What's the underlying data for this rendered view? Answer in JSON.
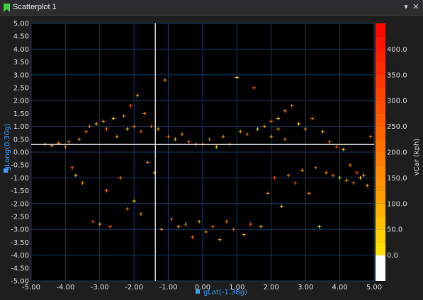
{
  "window": {
    "title": "Scatterplot 1",
    "dropdown_icon": "chevron-down-icon",
    "close_icon": "close-icon"
  },
  "colors": {
    "plot_bg": "#000000",
    "grid": "#123a66",
    "axis_text": "#dcdcdc",
    "axis_label": "#3aa0ff",
    "crosshair": "#d8d8d8",
    "title_icon": "#3cd23c"
  },
  "chart_data": {
    "type": "scatter",
    "xlabel": "gLat(-1.38g)",
    "ylabel": "gLong(0.30g)",
    "xlim": [
      -5,
      5
    ],
    "ylim": [
      -5,
      5
    ],
    "x_ticks": [
      "-5.00",
      "-4.00",
      "-3.00",
      "-2.00",
      "-1.00",
      "0.00",
      "1.00",
      "2.00",
      "3.00",
      "4.00",
      "5.00"
    ],
    "y_ticks": [
      "5.00",
      "4.50",
      "4.00",
      "3.50",
      "3.00",
      "2.50",
      "2.00",
      "1.50",
      "1.00",
      "0.50",
      "0.00",
      "-0.50",
      "-1.00",
      "-1.50",
      "-2.00",
      "-2.50",
      "-3.00",
      "-3.50",
      "-4.00",
      "-4.50",
      "-5.00"
    ],
    "grid": true,
    "cursor": {
      "x": -1.38,
      "y": 0.3
    },
    "colorbar": {
      "label": "vCar (kph)",
      "range": [
        -50,
        450
      ],
      "ticks": [
        "400.0",
        "350.0",
        "300.0",
        "250.0",
        "200.0",
        "150.0",
        "100.0",
        "50.0",
        "0.0"
      ],
      "tick_values": [
        400,
        350,
        300,
        250,
        200,
        150,
        100,
        50,
        0
      ],
      "bands": [
        {
          "from": -50,
          "to": 0,
          "color": "#ffffff"
        },
        {
          "from": 0,
          "to": 25,
          "color": "#ffe000"
        },
        {
          "from": 25,
          "to": 50,
          "color": "#ffd000"
        },
        {
          "from": 50,
          "to": 75,
          "color": "#ffc000"
        },
        {
          "from": 75,
          "to": 100,
          "color": "#ffb000"
        },
        {
          "from": 100,
          "to": 125,
          "color": "#ffa000"
        },
        {
          "from": 125,
          "to": 150,
          "color": "#ff9400"
        },
        {
          "from": 150,
          "to": 175,
          "color": "#ff8800"
        },
        {
          "from": 175,
          "to": 200,
          "color": "#ff7c00"
        },
        {
          "from": 200,
          "to": 225,
          "color": "#ff7000"
        },
        {
          "from": 225,
          "to": 250,
          "color": "#ff6600"
        },
        {
          "from": 250,
          "to": 275,
          "color": "#ff5c00"
        },
        {
          "from": 275,
          "to": 300,
          "color": "#ff5000"
        },
        {
          "from": 300,
          "to": 325,
          "color": "#ff4400"
        },
        {
          "from": 325,
          "to": 350,
          "color": "#ff3800"
        },
        {
          "from": 350,
          "to": 375,
          "color": "#ff2c00"
        },
        {
          "from": 375,
          "to": 400,
          "color": "#ff2000"
        },
        {
          "from": 400,
          "to": 425,
          "color": "#ff1400"
        },
        {
          "from": 425,
          "to": 450,
          "color": "#ff0800"
        }
      ]
    },
    "point_colors": [
      "#ffd000",
      "#ffb000",
      "#ff9600",
      "#ff8200",
      "#ff6e00",
      "#ff5a00"
    ],
    "series": [
      {
        "name": "points",
        "points": [
          [
            -4.6,
            0.3
          ],
          [
            -4.4,
            0.25
          ],
          [
            -4.2,
            0.35
          ],
          [
            -4.0,
            0.2
          ],
          [
            -3.9,
            0.4
          ],
          [
            -3.8,
            -0.6
          ],
          [
            -3.7,
            -0.9
          ],
          [
            -3.6,
            0.5
          ],
          [
            -3.5,
            -1.2
          ],
          [
            -3.4,
            0.8
          ],
          [
            -3.3,
            1.0
          ],
          [
            -3.2,
            -2.7
          ],
          [
            -3.1,
            1.1
          ],
          [
            -3.0,
            -2.8
          ],
          [
            -2.9,
            1.2
          ],
          [
            -2.8,
            0.9
          ],
          [
            -2.8,
            -1.5
          ],
          [
            -2.7,
            -2.9
          ],
          [
            -2.6,
            1.3
          ],
          [
            -2.5,
            0.6
          ],
          [
            -2.4,
            -1.0
          ],
          [
            -2.3,
            1.4
          ],
          [
            -2.2,
            -2.2
          ],
          [
            -2.1,
            1.8
          ],
          [
            -2.0,
            -1.9
          ],
          [
            -1.9,
            2.2
          ],
          [
            -1.8,
            -2.4
          ],
          [
            -1.7,
            1.5
          ],
          [
            -1.6,
            -0.4
          ],
          [
            -1.5,
            1.0
          ],
          [
            -1.4,
            -0.8
          ],
          [
            -1.3,
            0.9
          ],
          [
            -1.2,
            -3.0
          ],
          [
            -1.1,
            2.8
          ],
          [
            -1.0,
            0.6
          ],
          [
            -0.9,
            -2.6
          ],
          [
            -0.8,
            0.5
          ],
          [
            -0.7,
            -2.9
          ],
          [
            -0.6,
            0.7
          ],
          [
            -0.5,
            -2.8
          ],
          [
            -0.4,
            0.4
          ],
          [
            -0.3,
            -3.3
          ],
          [
            -0.2,
            0.3
          ],
          [
            -0.1,
            -2.7
          ],
          [
            0.0,
            0.3
          ],
          [
            0.1,
            -3.1
          ],
          [
            0.2,
            0.5
          ],
          [
            0.3,
            -2.9
          ],
          [
            0.4,
            0.2
          ],
          [
            0.5,
            -3.4
          ],
          [
            0.6,
            0.6
          ],
          [
            0.7,
            -2.7
          ],
          [
            0.8,
            0.3
          ],
          [
            0.9,
            -3.0
          ],
          [
            1.0,
            2.9
          ],
          [
            1.1,
            0.8
          ],
          [
            1.2,
            -3.2
          ],
          [
            1.3,
            0.7
          ],
          [
            1.4,
            -2.8
          ],
          [
            1.5,
            2.5
          ],
          [
            1.6,
            0.9
          ],
          [
            1.7,
            -2.9
          ],
          [
            1.8,
            1.0
          ],
          [
            1.9,
            -1.6
          ],
          [
            2.0,
            1.2
          ],
          [
            2.1,
            -1.0
          ],
          [
            2.2,
            1.3
          ],
          [
            2.3,
            -2.1
          ],
          [
            2.4,
            1.6
          ],
          [
            2.5,
            -0.9
          ],
          [
            2.6,
            1.8
          ],
          [
            2.7,
            -1.2
          ],
          [
            2.8,
            1.1
          ],
          [
            2.9,
            -0.7
          ],
          [
            3.0,
            0.9
          ],
          [
            3.1,
            -1.6
          ],
          [
            3.2,
            1.3
          ],
          [
            3.3,
            -0.6
          ],
          [
            3.4,
            -2.9
          ],
          [
            3.5,
            0.8
          ],
          [
            3.6,
            -0.8
          ],
          [
            3.7,
            0.4
          ],
          [
            3.8,
            -0.9
          ],
          [
            3.9,
            0.2
          ],
          [
            4.0,
            -1.0
          ],
          [
            4.1,
            0.1
          ],
          [
            4.2,
            -1.1
          ],
          [
            4.3,
            -0.5
          ],
          [
            4.4,
            -1.2
          ],
          [
            4.5,
            -0.8
          ],
          [
            4.6,
            -1.0
          ],
          [
            4.7,
            -0.9
          ],
          [
            4.8,
            -1.3
          ],
          [
            4.9,
            0.6
          ],
          [
            -2.0,
            1.0
          ],
          [
            -1.8,
            0.8
          ],
          [
            -2.2,
            0.9
          ],
          [
            2.0,
            0.6
          ],
          [
            2.2,
            0.9
          ],
          [
            2.4,
            0.5
          ]
        ]
      }
    ]
  }
}
